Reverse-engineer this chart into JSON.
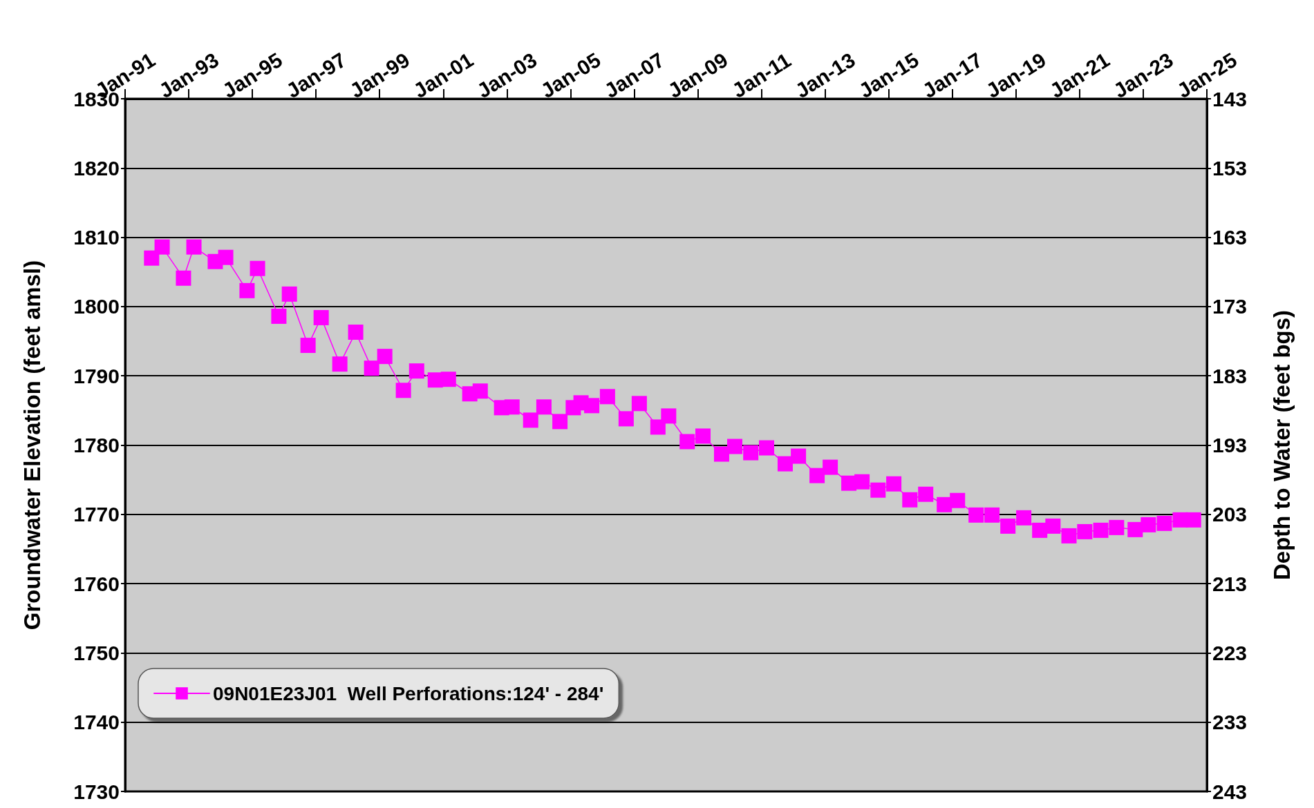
{
  "chart_data": {
    "type": "line",
    "ylabel": "Groundwater Elevation (feet amsl)",
    "y2label": "Depth to Water (feet bgs)",
    "x": [
      "1991-11",
      "1992-03",
      "1992-11",
      "1993-03",
      "1993-11",
      "1994-03",
      "1994-11",
      "1995-03",
      "1995-11",
      "1996-03",
      "1996-10",
      "1997-03",
      "1997-10",
      "1998-04",
      "1998-10",
      "1999-03",
      "1999-10",
      "2000-03",
      "2000-10",
      "2001-03",
      "2001-11",
      "2002-03",
      "2002-11",
      "2003-03",
      "2003-10",
      "2004-03",
      "2004-09",
      "2005-02",
      "2005-05",
      "2005-09",
      "2006-03",
      "2006-10",
      "2007-03",
      "2007-10",
      "2008-02",
      "2008-09",
      "2009-03",
      "2009-10",
      "2010-03",
      "2010-09",
      "2011-03",
      "2011-10",
      "2012-03",
      "2012-10",
      "2013-03",
      "2013-10",
      "2014-03",
      "2014-09",
      "2015-03",
      "2015-09",
      "2016-03",
      "2016-10",
      "2017-03",
      "2017-10",
      "2018-04",
      "2018-10",
      "2019-04",
      "2019-10",
      "2020-03",
      "2020-09",
      "2021-03",
      "2021-09",
      "2022-03",
      "2022-10",
      "2023-03",
      "2023-09",
      "2024-03",
      "2024-08"
    ],
    "series": [
      {
        "name": "09N01E23J01  Well Perforations:124' - 284'",
        "color": "#ff00ff",
        "values": [
          1807.0,
          1808.6,
          1804.1,
          1808.6,
          1806.5,
          1807.1,
          1802.3,
          1805.5,
          1798.6,
          1801.8,
          1794.4,
          1798.4,
          1791.7,
          1796.3,
          1791.1,
          1792.8,
          1787.9,
          1790.7,
          1789.4,
          1789.5,
          1787.4,
          1787.8,
          1785.4,
          1785.5,
          1783.6,
          1785.5,
          1783.4,
          1785.4,
          1786.1,
          1785.7,
          1787.0,
          1783.8,
          1786.0,
          1782.6,
          1784.2,
          1780.5,
          1781.3,
          1778.7,
          1779.8,
          1778.9,
          1779.6,
          1777.3,
          1778.4,
          1775.6,
          1776.8,
          1774.5,
          1774.7,
          1773.5,
          1774.4,
          1772.1,
          1772.9,
          1771.4,
          1772.0,
          1769.9,
          1769.9,
          1768.3,
          1769.5,
          1767.7,
          1768.3,
          1766.9,
          1767.5,
          1767.7,
          1768.1,
          1767.8,
          1768.5,
          1768.7,
          1769.2,
          1769.2
        ]
      }
    ],
    "xlim": [
      "1991-01",
      "2025-01"
    ],
    "xticks": [
      {
        "value": "1991-01",
        "label": "Jan-91"
      },
      {
        "value": "1993-01",
        "label": "Jan-93"
      },
      {
        "value": "1995-01",
        "label": "Jan-95"
      },
      {
        "value": "1997-01",
        "label": "Jan-97"
      },
      {
        "value": "1999-01",
        "label": "Jan-99"
      },
      {
        "value": "2001-01",
        "label": "Jan-01"
      },
      {
        "value": "2003-01",
        "label": "Jan-03"
      },
      {
        "value": "2005-01",
        "label": "Jan-05"
      },
      {
        "value": "2007-01",
        "label": "Jan-07"
      },
      {
        "value": "2009-01",
        "label": "Jan-09"
      },
      {
        "value": "2011-01",
        "label": "Jan-11"
      },
      {
        "value": "2013-01",
        "label": "Jan-13"
      },
      {
        "value": "2015-01",
        "label": "Jan-15"
      },
      {
        "value": "2017-01",
        "label": "Jan-17"
      },
      {
        "value": "2019-01",
        "label": "Jan-19"
      },
      {
        "value": "2021-01",
        "label": "Jan-21"
      },
      {
        "value": "2023-01",
        "label": "Jan-23"
      },
      {
        "value": "2025-01",
        "label": "Jan-25"
      }
    ],
    "ylim": [
      1730,
      1830
    ],
    "yticks": [
      1730,
      1740,
      1750,
      1760,
      1770,
      1780,
      1790,
      1800,
      1810,
      1820,
      1830
    ],
    "y2lim": [
      243,
      143
    ],
    "y2ticks": [
      143,
      153,
      163,
      173,
      183,
      193,
      203,
      213,
      223,
      233,
      243
    ],
    "grid": "y",
    "legend": "bottom left",
    "marker": "square",
    "line_style": "solid"
  }
}
